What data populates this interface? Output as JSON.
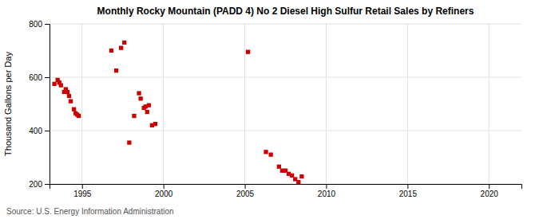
{
  "chart_data": {
    "type": "scatter",
    "title": "Monthly Rocky Mountain (PADD 4) No 2 Diesel High Sulfur Retail Sales by Refiners",
    "ylabel": "Thousand Gallons per Day",
    "annotations": [
      "Source: U.S. Energy Information Administration"
    ],
    "x": [
      1993.3,
      1993.5,
      1993.6,
      1993.7,
      1993.9,
      1994.0,
      1994.1,
      1994.2,
      1994.3,
      1994.5,
      1994.6,
      1994.7,
      1994.8,
      1996.8,
      1997.1,
      1997.4,
      1997.6,
      1997.9,
      1998.2,
      1998.5,
      1998.6,
      1998.8,
      1998.9,
      1999.0,
      1999.1,
      1999.3,
      1999.5,
      2005.2,
      2006.3,
      2006.6,
      2007.1,
      2007.3,
      2007.5,
      2007.7,
      2007.9,
      2008.1,
      2008.3,
      2008.5
    ],
    "values": [
      575,
      590,
      580,
      570,
      545,
      555,
      545,
      530,
      510,
      480,
      465,
      460,
      455,
      700,
      625,
      710,
      730,
      355,
      455,
      540,
      520,
      485,
      490,
      470,
      495,
      420,
      425,
      695,
      320,
      310,
      265,
      250,
      250,
      238,
      232,
      218,
      207,
      228
    ],
    "color": "#cc0000",
    "marker": "square",
    "xlim": [
      1993,
      2022
    ],
    "ylim": [
      200,
      800
    ],
    "xticks": [
      1995,
      2000,
      2005,
      2010,
      2015,
      2020
    ],
    "yticks": [
      200,
      400,
      600,
      800
    ],
    "grid": true
  }
}
